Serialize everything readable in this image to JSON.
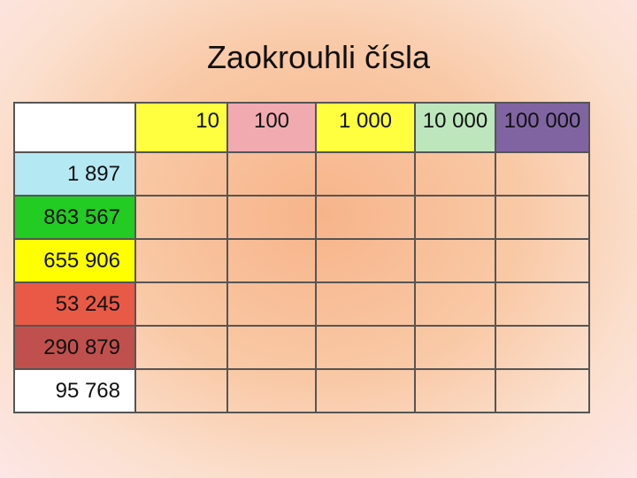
{
  "title": "Zaokrouhli čísla",
  "table": {
    "header": [
      "10",
      "100",
      "1 000",
      "10 000",
      "100 000"
    ],
    "rows": [
      "1 897",
      "863 567",
      "655 906",
      "53 245",
      "290 879",
      "95 768"
    ]
  }
}
